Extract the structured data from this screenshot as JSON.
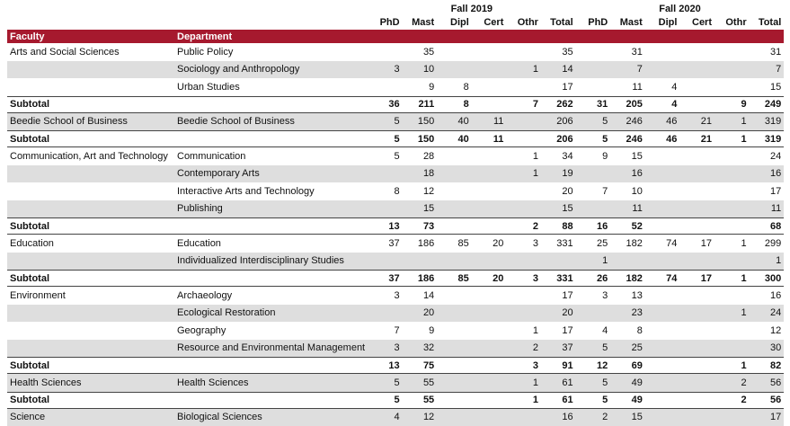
{
  "header": {
    "groups": [
      "Fall 2019",
      "Fall 2020"
    ],
    "columns": [
      "PhD",
      "Mast",
      "Dipl",
      "Cert",
      "Othr",
      "Total"
    ],
    "faculty_label": "Faculty",
    "department_label": "Department"
  },
  "table": {
    "rows": [
      {
        "faculty": "Arts and Social Sciences",
        "department": "Public Policy",
        "values": [
          null,
          35,
          null,
          null,
          null,
          35,
          null,
          31,
          null,
          null,
          null,
          31
        ]
      },
      {
        "department": "Sociology and Anthropology",
        "values": [
          3,
          10,
          null,
          null,
          1,
          14,
          null,
          7,
          null,
          null,
          null,
          7
        ]
      },
      {
        "department": "Urban Studies",
        "values": [
          null,
          9,
          8,
          null,
          null,
          17,
          null,
          11,
          4,
          null,
          null,
          15
        ]
      },
      {
        "subtotal": "Subtotal",
        "values": [
          36,
          211,
          8,
          null,
          7,
          262,
          31,
          205,
          4,
          null,
          9,
          249
        ]
      },
      {
        "faculty": "Beedie School of Business",
        "department": "Beedie School of Business",
        "values": [
          5,
          150,
          40,
          11,
          null,
          206,
          5,
          246,
          46,
          21,
          1,
          319
        ]
      },
      {
        "subtotal": "Subtotal",
        "values": [
          5,
          150,
          40,
          11,
          null,
          206,
          5,
          246,
          46,
          21,
          1,
          319
        ]
      },
      {
        "faculty": "Communication, Art and Technology",
        "department": "Communication",
        "values": [
          5,
          28,
          null,
          null,
          1,
          34,
          9,
          15,
          null,
          null,
          null,
          24
        ]
      },
      {
        "department": "Contemporary Arts",
        "values": [
          null,
          18,
          null,
          null,
          1,
          19,
          null,
          16,
          null,
          null,
          null,
          16
        ]
      },
      {
        "department": "Interactive Arts and Technology",
        "values": [
          8,
          12,
          null,
          null,
          null,
          20,
          7,
          10,
          null,
          null,
          null,
          17
        ]
      },
      {
        "department": "Publishing",
        "values": [
          null,
          15,
          null,
          null,
          null,
          15,
          null,
          11,
          null,
          null,
          null,
          11
        ]
      },
      {
        "subtotal": "Subtotal",
        "values": [
          13,
          73,
          null,
          null,
          2,
          88,
          16,
          52,
          null,
          null,
          null,
          68
        ]
      },
      {
        "faculty": "Education",
        "department": "Education",
        "values": [
          37,
          186,
          85,
          20,
          3,
          331,
          25,
          182,
          74,
          17,
          1,
          299
        ]
      },
      {
        "department": "Individualized Interdisciplinary Studies",
        "values": [
          null,
          null,
          null,
          null,
          null,
          null,
          1,
          null,
          null,
          null,
          null,
          1
        ]
      },
      {
        "subtotal": "Subtotal",
        "values": [
          37,
          186,
          85,
          20,
          3,
          331,
          26,
          182,
          74,
          17,
          1,
          300
        ]
      },
      {
        "faculty": "Environment",
        "department": "Archaeology",
        "values": [
          3,
          14,
          null,
          null,
          null,
          17,
          3,
          13,
          null,
          null,
          null,
          16
        ]
      },
      {
        "department": "Ecological Restoration",
        "values": [
          null,
          20,
          null,
          null,
          null,
          20,
          null,
          23,
          null,
          null,
          1,
          24
        ]
      },
      {
        "department": "Geography",
        "values": [
          7,
          9,
          null,
          null,
          1,
          17,
          4,
          8,
          null,
          null,
          null,
          12
        ]
      },
      {
        "department": "Resource and Environmental Management",
        "values": [
          3,
          32,
          null,
          null,
          2,
          37,
          5,
          25,
          null,
          null,
          null,
          30
        ]
      },
      {
        "subtotal": "Subtotal",
        "values": [
          13,
          75,
          null,
          null,
          3,
          91,
          12,
          69,
          null,
          null,
          1,
          82
        ]
      },
      {
        "faculty": "Health Sciences",
        "department": "Health Sciences",
        "values": [
          5,
          55,
          null,
          null,
          1,
          61,
          5,
          49,
          null,
          null,
          2,
          56
        ]
      },
      {
        "subtotal": "Subtotal",
        "values": [
          5,
          55,
          null,
          null,
          1,
          61,
          5,
          49,
          null,
          null,
          2,
          56
        ]
      },
      {
        "faculty": "Science",
        "department": "Biological Sciences",
        "values": [
          4,
          12,
          null,
          null,
          null,
          16,
          2,
          15,
          null,
          null,
          null,
          17
        ]
      }
    ]
  }
}
